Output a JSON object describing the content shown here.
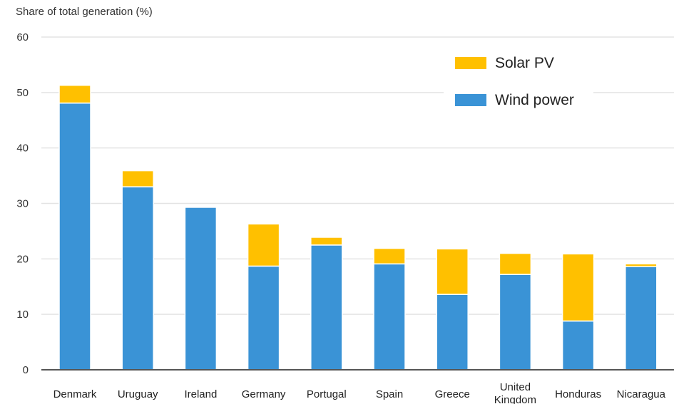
{
  "chart_data": {
    "type": "bar",
    "stacked": true,
    "ylabel": "Share of total generation (%)",
    "ylim": [
      0,
      60
    ],
    "yticks": [
      0,
      10,
      20,
      30,
      40,
      50,
      60
    ],
    "grid": true,
    "legend_position": "top-right",
    "categories": [
      "Denmark",
      "Uruguay",
      "Ireland",
      "Germany",
      "Portugal",
      "Spain",
      "Greece",
      "United Kingdom",
      "Honduras",
      "Nicaragua"
    ],
    "series": [
      {
        "name": "Wind power",
        "color": "#3a93d6",
        "values": [
          48.1,
          33.0,
          29.3,
          18.7,
          22.5,
          19.1,
          13.6,
          17.2,
          8.8,
          18.6
        ]
      },
      {
        "name": "Solar PV",
        "color": "#ffc000",
        "values": [
          3.2,
          2.9,
          0.0,
          7.6,
          1.4,
          2.8,
          8.2,
          3.8,
          12.1,
          0.5
        ]
      }
    ],
    "legend_order": [
      "Solar PV",
      "Wind power"
    ]
  }
}
